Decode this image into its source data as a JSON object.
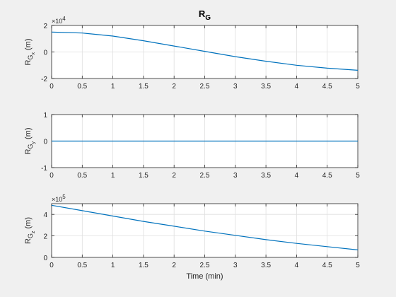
{
  "figure": {
    "background": "#f0f0f0",
    "axes_background": "#ffffff",
    "line_color": "#0072bd",
    "grid_color": "#dfdfdf",
    "axis_color": "#262626"
  },
  "chart_data": [
    {
      "type": "line",
      "title": "R",
      "title_sub": "G",
      "ylabel_main": "R",
      "ylabel_sub": "G",
      "ylabel_subsub": "x",
      "ylabel_unit": "(m)",
      "xlabel": "",
      "exponent_base": "×10",
      "exponent_power": "4",
      "xlim": [
        0,
        5
      ],
      "ylim": [
        -2,
        2
      ],
      "xticks": [
        0,
        0.5,
        1,
        1.5,
        2,
        2.5,
        3,
        3.5,
        4,
        4.5,
        5
      ],
      "xtick_labels": [
        "0",
        "0.5",
        "1",
        "1.5",
        "2",
        "2.5",
        "3",
        "3.5",
        "4",
        "4.5",
        "5"
      ],
      "yticks": [
        -2,
        0,
        2
      ],
      "ytick_labels": [
        "-2",
        "0",
        "2"
      ],
      "grid": true,
      "series": [
        {
          "x": [
            0,
            0.5,
            1,
            1.5,
            2,
            2.5,
            3,
            3.5,
            4,
            4.5,
            5
          ],
          "y": [
            1.5,
            1.43,
            1.2,
            0.85,
            0.45,
            0.05,
            -0.35,
            -0.7,
            -1.0,
            -1.22,
            -1.38
          ]
        }
      ]
    },
    {
      "type": "line",
      "title": "",
      "ylabel_main": "R",
      "ylabel_sub": "G",
      "ylabel_subsub": "y",
      "ylabel_unit": "(m)",
      "xlabel": "",
      "xlim": [
        0,
        5
      ],
      "ylim": [
        -1,
        1
      ],
      "xticks": [
        0,
        0.5,
        1,
        1.5,
        2,
        2.5,
        3,
        3.5,
        4,
        4.5,
        5
      ],
      "xtick_labels": [
        "0",
        "0.5",
        "1",
        "1.5",
        "2",
        "2.5",
        "3",
        "3.5",
        "4",
        "4.5",
        "5"
      ],
      "yticks": [
        -1,
        0,
        1
      ],
      "ytick_labels": [
        "-1",
        "0",
        "1"
      ],
      "grid": true,
      "series": [
        {
          "x": [
            0,
            5
          ],
          "y": [
            0,
            0
          ]
        }
      ]
    },
    {
      "type": "line",
      "title": "",
      "ylabel_main": "R",
      "ylabel_sub": "G",
      "ylabel_subsub": "z",
      "ylabel_unit": "(m)",
      "xlabel": "Time (min)",
      "exponent_base": "×10",
      "exponent_power": "5",
      "xlim": [
        0,
        5
      ],
      "ylim": [
        0,
        5
      ],
      "xticks": [
        0,
        0.5,
        1,
        1.5,
        2,
        2.5,
        3,
        3.5,
        4,
        4.5,
        5
      ],
      "xtick_labels": [
        "0",
        "0.5",
        "1",
        "1.5",
        "2",
        "2.5",
        "3",
        "3.5",
        "4",
        "4.5",
        "5"
      ],
      "yticks": [
        0,
        2,
        4
      ],
      "ytick_labels": [
        "0",
        "2",
        "4"
      ],
      "grid": true,
      "series": [
        {
          "x": [
            0,
            0.5,
            1,
            1.5,
            2,
            2.5,
            3,
            3.5,
            4,
            4.5,
            5
          ],
          "y": [
            4.85,
            4.35,
            3.85,
            3.35,
            2.9,
            2.45,
            2.05,
            1.65,
            1.3,
            1.0,
            0.7
          ]
        }
      ]
    }
  ]
}
